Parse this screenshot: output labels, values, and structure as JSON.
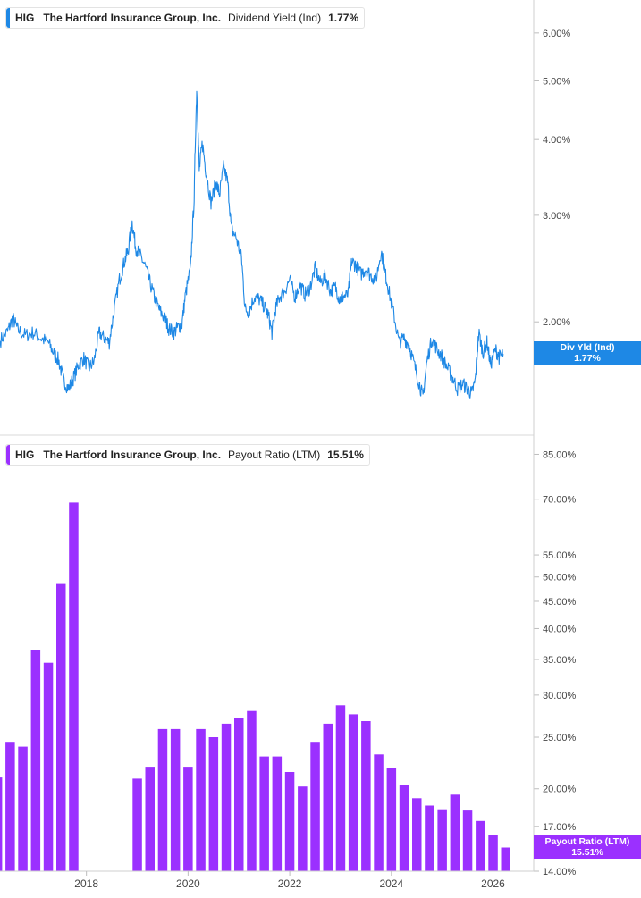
{
  "chart_data": [
    {
      "type": "line",
      "ticker": "HIG",
      "company": "The Hartford Insurance Group, Inc.",
      "metric": "Dividend Yield (Ind)",
      "current_value": "1.77%",
      "tag_label": "Div Yld (Ind)",
      "tag_value": "1.77%",
      "color": "#1e88e5",
      "y_scale": "log",
      "ylim": [
        1.3,
        6.8
      ],
      "y_ticks": [
        "6.00%",
        "5.00%",
        "4.00%",
        "3.00%",
        "2.00%"
      ],
      "y_tick_values": [
        6.0,
        5.0,
        4.0,
        3.0,
        2.0
      ],
      "xlim": [
        2016.3,
        2026.8
      ],
      "grid": false,
      "points": [
        [
          2016.3,
          1.86
        ],
        [
          2016.45,
          1.93
        ],
        [
          2016.55,
          2.03
        ],
        [
          2016.65,
          1.94
        ],
        [
          2016.8,
          1.9
        ],
        [
          2016.95,
          1.92
        ],
        [
          2017.1,
          1.88
        ],
        [
          2017.25,
          1.85
        ],
        [
          2017.35,
          1.78
        ],
        [
          2017.45,
          1.73
        ],
        [
          2017.55,
          1.6
        ],
        [
          2017.65,
          1.55
        ],
        [
          2017.75,
          1.62
        ],
        [
          2017.85,
          1.7
        ],
        [
          2017.95,
          1.74
        ],
        [
          2018.05,
          1.68
        ],
        [
          2018.15,
          1.72
        ],
        [
          2018.25,
          1.92
        ],
        [
          2018.35,
          1.88
        ],
        [
          2018.45,
          1.85
        ],
        [
          2018.55,
          2.1
        ],
        [
          2018.65,
          2.35
        ],
        [
          2018.75,
          2.52
        ],
        [
          2018.82,
          2.62
        ],
        [
          2018.9,
          2.92
        ],
        [
          2018.97,
          2.65
        ],
        [
          2019.05,
          2.58
        ],
        [
          2019.15,
          2.48
        ],
        [
          2019.25,
          2.32
        ],
        [
          2019.35,
          2.18
        ],
        [
          2019.45,
          2.08
        ],
        [
          2019.55,
          2.02
        ],
        [
          2019.62,
          1.95
        ],
        [
          2019.72,
          1.92
        ],
        [
          2019.8,
          1.96
        ],
        [
          2019.88,
          1.98
        ],
        [
          2019.95,
          2.22
        ],
        [
          2020.05,
          2.45
        ],
        [
          2020.12,
          3.2
        ],
        [
          2020.17,
          4.85
        ],
        [
          2020.22,
          3.55
        ],
        [
          2020.28,
          3.95
        ],
        [
          2020.35,
          3.55
        ],
        [
          2020.45,
          3.15
        ],
        [
          2020.55,
          3.4
        ],
        [
          2020.62,
          3.25
        ],
        [
          2020.7,
          3.6
        ],
        [
          2020.78,
          3.4
        ],
        [
          2020.85,
          2.85
        ],
        [
          2020.95,
          2.75
        ],
        [
          2021.05,
          2.55
        ],
        [
          2021.12,
          2.1
        ],
        [
          2021.2,
          2.08
        ],
        [
          2021.3,
          2.2
        ],
        [
          2021.4,
          2.18
        ],
        [
          2021.5,
          2.12
        ],
        [
          2021.58,
          2.05
        ],
        [
          2021.65,
          1.92
        ],
        [
          2021.72,
          2.1
        ],
        [
          2021.8,
          2.2
        ],
        [
          2021.9,
          2.25
        ],
        [
          2022.0,
          2.35
        ],
        [
          2022.1,
          2.2
        ],
        [
          2022.2,
          2.3
        ],
        [
          2022.3,
          2.22
        ],
        [
          2022.4,
          2.28
        ],
        [
          2022.5,
          2.45
        ],
        [
          2022.6,
          2.32
        ],
        [
          2022.7,
          2.38
        ],
        [
          2022.8,
          2.25
        ],
        [
          2022.9,
          2.28
        ],
        [
          2022.98,
          2.18
        ],
        [
          2023.05,
          2.2
        ],
        [
          2023.15,
          2.22
        ],
        [
          2023.22,
          2.52
        ],
        [
          2023.3,
          2.48
        ],
        [
          2023.4,
          2.4
        ],
        [
          2023.5,
          2.45
        ],
        [
          2023.6,
          2.38
        ],
        [
          2023.7,
          2.35
        ],
        [
          2023.8,
          2.62
        ],
        [
          2023.88,
          2.4
        ],
        [
          2023.95,
          2.25
        ],
        [
          2024.05,
          2.05
        ],
        [
          2024.15,
          1.85
        ],
        [
          2024.25,
          1.88
        ],
        [
          2024.35,
          1.83
        ],
        [
          2024.45,
          1.7
        ],
        [
          2024.55,
          1.58
        ],
        [
          2024.62,
          1.5
        ],
        [
          2024.7,
          1.72
        ],
        [
          2024.8,
          1.88
        ],
        [
          2024.9,
          1.8
        ],
        [
          2025.0,
          1.75
        ],
        [
          2025.1,
          1.68
        ],
        [
          2025.2,
          1.62
        ],
        [
          2025.3,
          1.55
        ],
        [
          2025.4,
          1.58
        ],
        [
          2025.5,
          1.55
        ],
        [
          2025.58,
          1.52
        ],
        [
          2025.65,
          1.6
        ],
        [
          2025.72,
          1.92
        ],
        [
          2025.8,
          1.78
        ],
        [
          2025.88,
          1.85
        ],
        [
          2025.95,
          1.7
        ],
        [
          2026.05,
          1.8
        ],
        [
          2026.12,
          1.75
        ],
        [
          2026.2,
          1.77
        ]
      ]
    },
    {
      "type": "bar",
      "ticker": "HIG",
      "company": "The Hartford Insurance Group, Inc.",
      "metric": "Payout Ratio (LTM)",
      "current_value": "15.51%",
      "tag_label": "Payout Ratio (LTM)",
      "tag_value": "15.51%",
      "color": "#9b30ff",
      "y_scale": "log",
      "ylim": [
        14.0,
        92.0
      ],
      "y_ticks": [
        "85.00%",
        "70.00%",
        "55.00%",
        "50.00%",
        "45.00%",
        "40.00%",
        "35.00%",
        "30.00%",
        "25.00%",
        "20.00%",
        "17.00%",
        "14.00%"
      ],
      "y_tick_values": [
        85,
        70,
        55,
        50,
        45,
        40,
        35,
        30,
        25,
        20,
        17,
        14
      ],
      "xlim": [
        2016.3,
        2026.8
      ],
      "x_ticks": [
        "2018",
        "2020",
        "2022",
        "2024",
        "2026"
      ],
      "x_tick_values": [
        2018,
        2020,
        2022,
        2024,
        2026
      ],
      "grid": false,
      "bars": [
        [
          2016.25,
          21.0
        ],
        [
          2016.5,
          24.5
        ],
        [
          2016.75,
          24.0
        ],
        [
          2017.0,
          36.5
        ],
        [
          2017.25,
          34.5
        ],
        [
          2017.5,
          48.5
        ],
        [
          2017.75,
          69.0
        ],
        [
          2019.0,
          20.9
        ],
        [
          2019.25,
          22.0
        ],
        [
          2019.5,
          25.9
        ],
        [
          2019.75,
          25.9
        ],
        [
          2020.0,
          22.0
        ],
        [
          2020.25,
          25.9
        ],
        [
          2020.5,
          25.0
        ],
        [
          2020.75,
          26.5
        ],
        [
          2021.0,
          27.2
        ],
        [
          2021.25,
          28.0
        ],
        [
          2021.5,
          23.0
        ],
        [
          2021.75,
          23.0
        ],
        [
          2022.0,
          21.5
        ],
        [
          2022.25,
          20.2
        ],
        [
          2022.5,
          24.5
        ],
        [
          2022.75,
          26.5
        ],
        [
          2023.0,
          28.7
        ],
        [
          2023.25,
          27.6
        ],
        [
          2023.5,
          26.8
        ],
        [
          2023.75,
          23.2
        ],
        [
          2024.0,
          21.9
        ],
        [
          2024.25,
          20.3
        ],
        [
          2024.5,
          19.2
        ],
        [
          2024.75,
          18.6
        ],
        [
          2025.0,
          18.3
        ],
        [
          2025.25,
          19.5
        ],
        [
          2025.5,
          18.2
        ],
        [
          2025.75,
          17.4
        ],
        [
          2026.0,
          16.4
        ],
        [
          2026.25,
          15.51
        ]
      ]
    }
  ]
}
